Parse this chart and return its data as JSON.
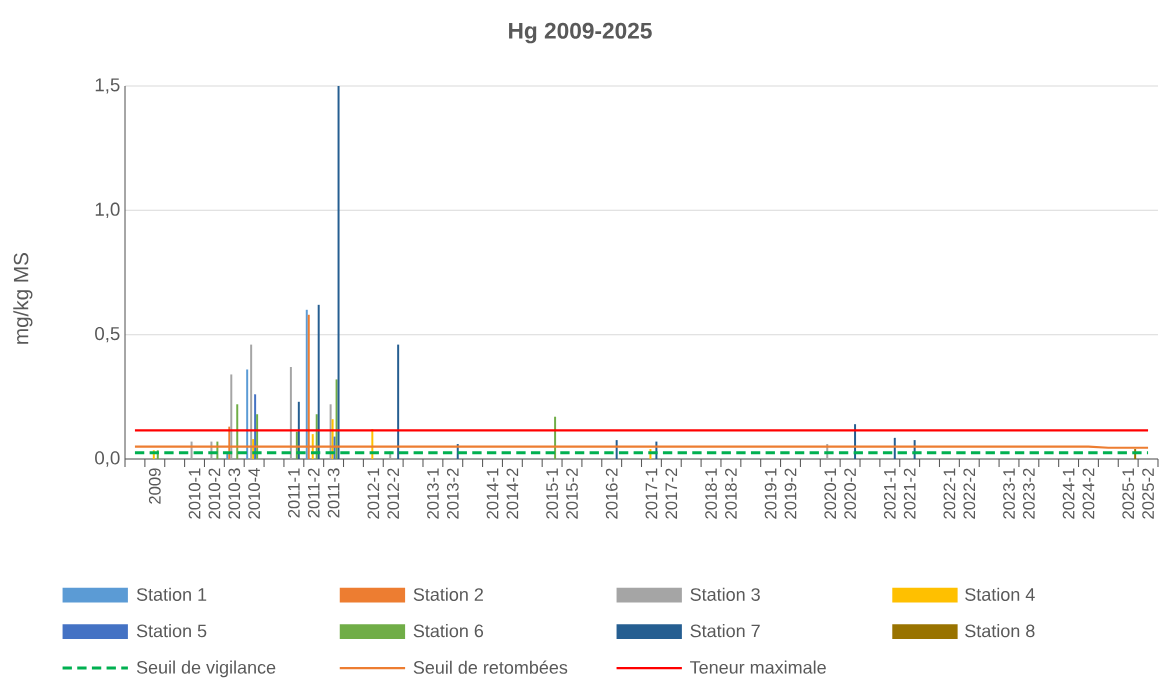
{
  "chart_data": {
    "type": "bar",
    "title": "Hg 2009-2025",
    "ylabel": "mg/kg MS",
    "categories": [
      null,
      "2009",
      null,
      "2010-1",
      "2010-2",
      "2010-3",
      "2010-4",
      null,
      "2011-1",
      "2011-2",
      "2011-3",
      null,
      "2012-1",
      "2012-2",
      null,
      "2013-1",
      "2013-2",
      null,
      "2014-1",
      "2014-2",
      null,
      "2015-1",
      "2015-2",
      null,
      "2016-2",
      null,
      "2017-1",
      "2017-2",
      null,
      "2018-1",
      "2018-2",
      null,
      "2019-1",
      "2019-2",
      null,
      "2020-1",
      "2020-2",
      null,
      "2021-1",
      "2021-2",
      null,
      "2022-1",
      "2022-2",
      null,
      "2023-1",
      "2023-2",
      null,
      "2024-1",
      "2024-2",
      null,
      "2025-1",
      "2025-2"
    ],
    "ylim": [
      0,
      1.5
    ],
    "yticks": [
      {
        "value": 0,
        "label": "0,0"
      },
      {
        "value": 0.5,
        "label": "0,5"
      },
      {
        "value": 1,
        "label": "1,0"
      },
      {
        "value": 1.5,
        "label": "1,5"
      }
    ],
    "grid": "y",
    "legend": "bottom",
    "series": [
      {
        "name": "Station 1",
        "color": "#5b9bd5",
        "values": [
          null,
          null,
          null,
          null,
          null,
          0.02,
          0.36,
          null,
          null,
          0.6,
          null,
          null,
          null,
          null,
          null,
          null,
          null,
          null,
          null,
          null,
          null,
          null,
          null,
          null,
          null,
          null,
          null,
          null,
          null,
          null,
          null,
          null,
          null,
          null,
          null,
          null,
          null,
          null,
          null,
          null,
          null,
          null,
          null,
          null,
          null,
          null,
          null,
          null,
          null,
          null,
          null,
          null
        ]
      },
      {
        "name": "Station 2",
        "color": "#ed7d31",
        "values": [
          null,
          null,
          null,
          null,
          null,
          0.13,
          null,
          null,
          null,
          0.58,
          null,
          null,
          null,
          null,
          null,
          null,
          null,
          null,
          null,
          null,
          null,
          null,
          null,
          null,
          null,
          null,
          null,
          null,
          null,
          null,
          null,
          null,
          null,
          null,
          null,
          null,
          null,
          null,
          null,
          null,
          null,
          null,
          null,
          null,
          null,
          null,
          null,
          null,
          null,
          null,
          null,
          null
        ]
      },
      {
        "name": "Station 3",
        "color": "#a5a5a5",
        "values": [
          null,
          null,
          null,
          0.07,
          0.07,
          0.34,
          0.46,
          null,
          0.37,
          null,
          0.22,
          null,
          null,
          0.03,
          null,
          null,
          null,
          null,
          null,
          null,
          null,
          null,
          null,
          null,
          null,
          null,
          null,
          null,
          null,
          null,
          null,
          null,
          null,
          null,
          null,
          0.06,
          null,
          null,
          null,
          null,
          null,
          null,
          null,
          null,
          null,
          null,
          null,
          null,
          null,
          null,
          null,
          null
        ]
      },
      {
        "name": "Station 4",
        "color": "#ffc000",
        "values": [
          null,
          0.035,
          null,
          null,
          null,
          null,
          0.08,
          null,
          null,
          0.1,
          0.16,
          null,
          0.12,
          null,
          null,
          null,
          null,
          null,
          null,
          null,
          null,
          null,
          null,
          null,
          null,
          null,
          0.04,
          null,
          null,
          null,
          null,
          null,
          null,
          null,
          null,
          null,
          null,
          null,
          null,
          null,
          null,
          null,
          null,
          null,
          null,
          null,
          null,
          null,
          null,
          null,
          null,
          null
        ]
      },
      {
        "name": "Station 5",
        "color": "#4472c4",
        "values": [
          null,
          null,
          null,
          null,
          null,
          null,
          0.26,
          null,
          null,
          null,
          0.09,
          null,
          null,
          null,
          null,
          null,
          null,
          null,
          null,
          null,
          null,
          null,
          null,
          null,
          null,
          null,
          null,
          null,
          null,
          null,
          null,
          null,
          null,
          null,
          null,
          null,
          null,
          null,
          null,
          null,
          null,
          null,
          null,
          null,
          null,
          null,
          null,
          null,
          null,
          null,
          null,
          null
        ]
      },
      {
        "name": "Station 6",
        "color": "#70ad47",
        "values": [
          null,
          0.035,
          null,
          null,
          0.07,
          0.22,
          0.18,
          null,
          0.11,
          0.18,
          0.32,
          null,
          null,
          null,
          null,
          null,
          null,
          null,
          null,
          null,
          null,
          0.17,
          null,
          null,
          null,
          null,
          null,
          null,
          null,
          null,
          null,
          null,
          null,
          null,
          null,
          null,
          null,
          null,
          null,
          null,
          null,
          null,
          null,
          null,
          null,
          null,
          null,
          null,
          null,
          null,
          null,
          null
        ]
      },
      {
        "name": "Station 7",
        "color": "#255e91",
        "values": [
          null,
          null,
          null,
          null,
          null,
          null,
          null,
          null,
          0.23,
          0.62,
          1.5,
          null,
          null,
          0.46,
          null,
          null,
          0.06,
          null,
          null,
          null,
          null,
          null,
          null,
          null,
          0.076,
          null,
          0.07,
          null,
          null,
          null,
          null,
          null,
          null,
          null,
          null,
          null,
          0.14,
          null,
          0.085,
          0.076,
          null,
          null,
          null,
          null,
          null,
          null,
          null,
          null,
          null,
          null,
          null,
          null
        ]
      },
      {
        "name": "Station 8",
        "color": "#997300",
        "values": [
          null,
          null,
          null,
          null,
          null,
          null,
          null,
          null,
          null,
          null,
          null,
          null,
          null,
          null,
          null,
          null,
          null,
          null,
          null,
          null,
          null,
          null,
          null,
          null,
          null,
          null,
          null,
          null,
          null,
          null,
          null,
          null,
          null,
          null,
          null,
          null,
          null,
          null,
          null,
          null,
          null,
          null,
          null,
          null,
          null,
          null,
          null,
          null,
          null,
          null,
          0.04,
          null
        ]
      },
      {
        "name": "Seuil de vigilance",
        "type": "line",
        "line_style": "dashed",
        "color": "#00b050",
        "values": [
          0.025,
          0.025,
          0.025,
          0.025,
          0.025,
          0.025,
          0.025,
          0.025,
          0.025,
          0.025,
          0.025,
          0.025,
          0.025,
          0.025,
          0.025,
          0.025,
          0.025,
          0.025,
          0.025,
          0.025,
          0.025,
          0.025,
          0.025,
          0.025,
          0.025,
          0.025,
          0.025,
          0.025,
          0.025,
          0.025,
          0.025,
          0.025,
          0.025,
          0.025,
          0.025,
          0.025,
          0.025,
          0.025,
          0.025,
          0.025,
          0.025,
          0.025,
          0.025,
          0.025,
          0.025,
          0.025,
          0.025,
          0.025,
          0.025,
          0.025,
          0.025,
          0.025
        ]
      },
      {
        "name": "Seuil de retombées",
        "type": "line",
        "color": "#ed7d31",
        "values": [
          0.05,
          0.05,
          0.05,
          0.05,
          0.05,
          0.05,
          0.05,
          0.05,
          0.05,
          0.05,
          0.05,
          0.05,
          0.05,
          0.05,
          0.05,
          0.05,
          0.05,
          0.05,
          0.05,
          0.05,
          0.05,
          0.05,
          0.05,
          0.05,
          0.05,
          0.05,
          0.05,
          0.05,
          0.05,
          0.05,
          0.05,
          0.05,
          0.05,
          0.05,
          0.05,
          0.05,
          0.05,
          0.05,
          0.05,
          0.05,
          0.05,
          0.05,
          0.05,
          0.05,
          0.05,
          0.05,
          0.05,
          0.05,
          0.05,
          0.045,
          0.045,
          0.045
        ]
      },
      {
        "name": "Teneur maximale",
        "type": "line",
        "color": "#ff0000",
        "values": [
          0.115,
          0.115,
          0.115,
          0.115,
          0.115,
          0.115,
          0.115,
          0.115,
          0.115,
          0.115,
          0.115,
          0.115,
          0.115,
          0.115,
          0.115,
          0.115,
          0.115,
          0.115,
          0.115,
          0.115,
          0.115,
          0.115,
          0.115,
          0.115,
          0.115,
          0.115,
          0.115,
          0.115,
          0.115,
          0.115,
          0.115,
          0.115,
          0.115,
          0.115,
          0.115,
          0.115,
          0.115,
          0.115,
          0.115,
          0.115,
          0.115,
          0.115,
          0.115,
          0.115,
          0.115,
          0.115,
          0.115,
          0.115,
          0.115,
          0.115,
          0.115,
          0.115
        ]
      }
    ]
  }
}
